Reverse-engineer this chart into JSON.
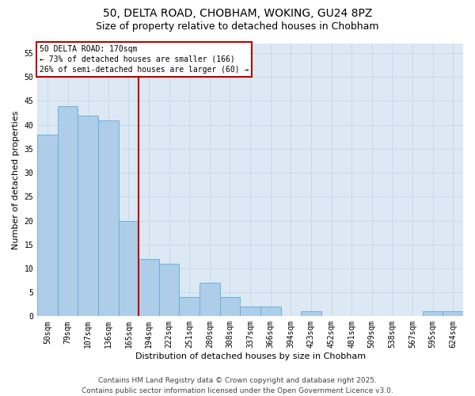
{
  "title1": "50, DELTA ROAD, CHOBHAM, WOKING, GU24 8PZ",
  "title2": "Size of property relative to detached houses in Chobham",
  "xlabel": "Distribution of detached houses by size in Chobham",
  "ylabel": "Number of detached properties",
  "categories": [
    "50sqm",
    "79sqm",
    "107sqm",
    "136sqm",
    "165sqm",
    "194sqm",
    "222sqm",
    "251sqm",
    "280sqm",
    "308sqm",
    "337sqm",
    "366sqm",
    "394sqm",
    "423sqm",
    "452sqm",
    "481sqm",
    "509sqm",
    "538sqm",
    "567sqm",
    "595sqm",
    "624sqm"
  ],
  "values": [
    38,
    44,
    42,
    41,
    20,
    12,
    11,
    4,
    7,
    4,
    2,
    2,
    0,
    1,
    0,
    0,
    0,
    0,
    0,
    1,
    1
  ],
  "bar_color": "#aecde8",
  "bar_edge_color": "#5aaedb",
  "vline_index": 4,
  "vline_color": "#bb0000",
  "annotation_title": "50 DELTA ROAD: 170sqm",
  "annotation_line1": "← 73% of detached houses are smaller (166)",
  "annotation_line2": "26% of semi-detached houses are larger (60) →",
  "annotation_box_color": "#bb0000",
  "ylim": [
    0,
    57
  ],
  "yticks": [
    0,
    5,
    10,
    15,
    20,
    25,
    30,
    35,
    40,
    45,
    50,
    55
  ],
  "grid_color": "#c8d8e8",
  "background_color": "#dce8f4",
  "footer1": "Contains HM Land Registry data © Crown copyright and database right 2025.",
  "footer2": "Contains public sector information licensed under the Open Government Licence v3.0.",
  "title_fontsize": 10,
  "subtitle_fontsize": 9,
  "axis_fontsize": 8,
  "tick_fontsize": 7,
  "annotation_fontsize": 7,
  "footer_fontsize": 6.5
}
